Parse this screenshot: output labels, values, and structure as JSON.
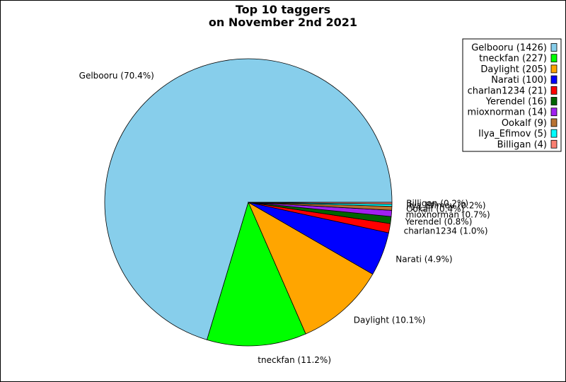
{
  "chart_data": {
    "type": "pie",
    "title": [
      "Top 10 taggers",
      "on November 2nd 2021"
    ],
    "slices": [
      {
        "name": "Gelbooru",
        "value": 1426,
        "percent": "70.4%",
        "color": "#87ceeb"
      },
      {
        "name": "tneckfan",
        "value": 227,
        "percent": "11.2%",
        "color": "#00ff00"
      },
      {
        "name": "Daylight",
        "value": 205,
        "percent": "10.1%",
        "color": "#ffa500"
      },
      {
        "name": "Narati",
        "value": 100,
        "percent": "4.9%",
        "color": "#0000ff"
      },
      {
        "name": "charlan1234",
        "value": 21,
        "percent": "1.0%",
        "color": "#ff0000"
      },
      {
        "name": "Yerendel",
        "value": 16,
        "percent": "0.8%",
        "color": "#006400"
      },
      {
        "name": "mioxnorman",
        "value": 14,
        "percent": "0.7%",
        "color": "#a020f0"
      },
      {
        "name": "Ookalf",
        "value": 9,
        "percent": "0.4%",
        "color": "#b87333"
      },
      {
        "name": "Ilya_Efimov",
        "value": 5,
        "percent": "0.2%",
        "color": "#00ffff"
      },
      {
        "name": "Billigan",
        "value": 4,
        "percent": "0.2%",
        "color": "#fa8072"
      }
    ],
    "legend_position": "top-right"
  }
}
